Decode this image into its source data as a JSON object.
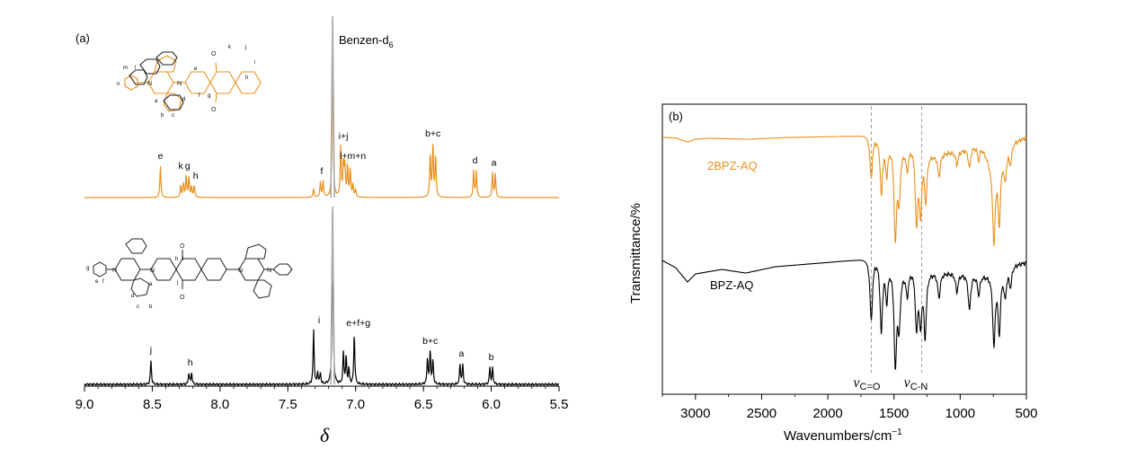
{
  "chart_data": [
    {
      "type": "line",
      "panel_label": "(a)",
      "title": "",
      "xlabel": "δ",
      "ylabel": "",
      "xlim": [
        9.0,
        5.5
      ],
      "x_reversed": true,
      "x_ticks": [
        "9.0",
        "8.5",
        "8.0",
        "7.5",
        "7.0",
        "6.5",
        "6.0",
        "5.5"
      ],
      "solvent_label": "Benzen-d",
      "solvent_subscript": "6",
      "series": [
        {
          "name": "2BPZ-AQ",
          "color": "#E8901E",
          "peaks": [
            {
              "x": 8.44,
              "h": 0.58
            },
            {
              "x": 8.29,
              "h": 0.22
            },
            {
              "x": 8.27,
              "h": 0.26
            },
            {
              "x": 8.25,
              "h": 0.4
            },
            {
              "x": 8.23,
              "h": 0.38
            },
            {
              "x": 8.21,
              "h": 0.2
            },
            {
              "x": 8.19,
              "h": 0.22
            },
            {
              "x": 7.31,
              "h": 0.16
            },
            {
              "x": 7.26,
              "h": 0.28
            },
            {
              "x": 7.24,
              "h": 0.3
            },
            {
              "x": 7.17,
              "h": 2.6
            },
            {
              "x": 7.11,
              "h": 0.95
            },
            {
              "x": 7.09,
              "h": 0.6
            },
            {
              "x": 7.08,
              "h": 0.55
            },
            {
              "x": 7.06,
              "h": 0.58
            },
            {
              "x": 7.04,
              "h": 0.52
            },
            {
              "x": 7.02,
              "h": 0.24
            },
            {
              "x": 7.0,
              "h": 0.14
            },
            {
              "x": 6.45,
              "h": 0.8
            },
            {
              "x": 6.43,
              "h": 1.0
            },
            {
              "x": 6.41,
              "h": 0.78
            },
            {
              "x": 6.13,
              "h": 0.5
            },
            {
              "x": 6.11,
              "h": 0.48
            },
            {
              "x": 5.99,
              "h": 0.46
            },
            {
              "x": 5.97,
              "h": 0.44
            }
          ],
          "labels": [
            {
              "text": "e",
              "x": 8.44
            },
            {
              "text": "k",
              "x": 8.29
            },
            {
              "text": "g",
              "x": 8.24
            },
            {
              "text": "h",
              "x": 8.18
            },
            {
              "text": "f",
              "x": 7.25
            },
            {
              "text": "i+j",
              "x": 7.09
            },
            {
              "text": "l+m+n",
              "x": 7.02
            },
            {
              "text": "b+c",
              "x": 6.43
            },
            {
              "text": "d",
              "x": 6.12
            },
            {
              "text": "a",
              "x": 5.98
            }
          ]
        },
        {
          "name": "BPZ-AQ",
          "color": "#000000",
          "peaks": [
            {
              "x": 8.51,
              "h": 0.45
            },
            {
              "x": 8.23,
              "h": 0.22
            },
            {
              "x": 8.21,
              "h": 0.22
            },
            {
              "x": 7.31,
              "h": 1.0
            },
            {
              "x": 7.28,
              "h": 0.22
            },
            {
              "x": 7.26,
              "h": 0.2
            },
            {
              "x": 7.17,
              "h": 3.2
            },
            {
              "x": 7.09,
              "h": 0.6
            },
            {
              "x": 7.07,
              "h": 0.5
            },
            {
              "x": 7.05,
              "h": 0.3
            },
            {
              "x": 7.01,
              "h": 0.95
            },
            {
              "x": 6.47,
              "h": 0.5
            },
            {
              "x": 6.45,
              "h": 0.62
            },
            {
              "x": 6.43,
              "h": 0.45
            },
            {
              "x": 6.23,
              "h": 0.38
            },
            {
              "x": 6.21,
              "h": 0.36
            },
            {
              "x": 6.01,
              "h": 0.32
            },
            {
              "x": 5.99,
              "h": 0.3
            }
          ],
          "labels": [
            {
              "text": "j",
              "x": 8.51
            },
            {
              "text": "h",
              "x": 8.22
            },
            {
              "text": "i",
              "x": 7.27
            },
            {
              "text": "e+f+g",
              "x": 6.98
            },
            {
              "text": "b+c",
              "x": 6.45
            },
            {
              "text": "a",
              "x": 6.22
            },
            {
              "text": "b",
              "x": 6.0
            }
          ]
        }
      ],
      "molecule_labels": {
        "top": [
          "m",
          "l",
          "n",
          "a",
          "b",
          "c",
          "d",
          "e",
          "f",
          "g",
          "h",
          "i",
          "j",
          "k"
        ],
        "bottom": [
          "g",
          "e",
          "f",
          "d",
          "c",
          "b",
          "a",
          "h",
          "i",
          "j"
        ]
      }
    },
    {
      "type": "line",
      "panel_label": "(b)",
      "title": "",
      "xlabel": "Wavenumbers/cm",
      "xlabel_superscript": "−1",
      "ylabel": "Transmittance/%",
      "xlim": [
        3250,
        500
      ],
      "x_reversed": true,
      "x_ticks": [
        "3000",
        "2500",
        "2000",
        "1500",
        "1000",
        "500"
      ],
      "reference_lines": [
        {
          "x": 1672,
          "label": "v",
          "sub": "C=O"
        },
        {
          "x": 1290,
          "label": "v",
          "sub": "C-N"
        }
      ],
      "series": [
        {
          "name": "2BPZ-AQ",
          "color": "#E8901E",
          "label": "2BPZ-AQ",
          "baseline": [
            [
              3250,
              0.0
            ],
            [
              3150,
              0.6
            ],
            [
              3060,
              5.0
            ],
            [
              3000,
              2.0
            ],
            [
              2900,
              1.0
            ],
            [
              2600,
              2.0
            ],
            [
              2300,
              0.0
            ],
            [
              2000,
              -1.0
            ],
            [
              1800,
              -2.0
            ],
            [
              1700,
              -4.0
            ],
            [
              1600,
              -2.0
            ],
            [
              1450,
              10.0
            ],
            [
              1350,
              5.0
            ],
            [
              1200,
              18.0
            ],
            [
              1000,
              14.0
            ],
            [
              850,
              6.0
            ],
            [
              760,
              30.0
            ],
            [
              600,
              4.0
            ],
            [
              500,
              0.0
            ]
          ],
          "bands": [
            {
              "x": 1672,
              "d": 48
            },
            {
              "x": 1595,
              "d": 62
            },
            {
              "x": 1555,
              "d": 35
            },
            {
              "x": 1490,
              "d": 104
            },
            {
              "x": 1462,
              "d": 55
            },
            {
              "x": 1400,
              "d": 25
            },
            {
              "x": 1330,
              "d": 85
            },
            {
              "x": 1300,
              "d": 70
            },
            {
              "x": 1260,
              "d": 55
            },
            {
              "x": 1160,
              "d": 25
            },
            {
              "x": 1025,
              "d": 15
            },
            {
              "x": 930,
              "d": 22
            },
            {
              "x": 860,
              "d": 18
            },
            {
              "x": 745,
              "d": 88
            },
            {
              "x": 705,
              "d": 72
            },
            {
              "x": 660,
              "d": 30
            },
            {
              "x": 620,
              "d": 20
            }
          ]
        },
        {
          "name": "BPZ-AQ",
          "color": "#000000",
          "label": "BPZ-AQ",
          "baseline": [
            [
              3250,
              0.0
            ],
            [
              3150,
              8.0
            ],
            [
              3060,
              24.0
            ],
            [
              3000,
              15.0
            ],
            [
              2800,
              10.0
            ],
            [
              2620,
              14.0
            ],
            [
              2400,
              7.0
            ],
            [
              2000,
              2.0
            ],
            [
              1800,
              -1.0
            ],
            [
              1700,
              -4.0
            ],
            [
              1600,
              -6.0
            ],
            [
              1450,
              10.0
            ],
            [
              1350,
              5.0
            ],
            [
              1200,
              12.0
            ],
            [
              1000,
              14.0
            ],
            [
              800,
              15.0
            ],
            [
              600,
              4.0
            ],
            [
              500,
              2.0
            ]
          ],
          "bands": [
            {
              "x": 1672,
              "d": 70
            },
            {
              "x": 1596,
              "d": 82
            },
            {
              "x": 1555,
              "d": 40
            },
            {
              "x": 1490,
              "d": 108
            },
            {
              "x": 1462,
              "d": 60
            },
            {
              "x": 1400,
              "d": 28
            },
            {
              "x": 1330,
              "d": 66
            },
            {
              "x": 1300,
              "d": 58
            },
            {
              "x": 1265,
              "d": 72
            },
            {
              "x": 1160,
              "d": 28
            },
            {
              "x": 1025,
              "d": 20
            },
            {
              "x": 930,
              "d": 40
            },
            {
              "x": 860,
              "d": 22
            },
            {
              "x": 745,
              "d": 80
            },
            {
              "x": 705,
              "d": 68
            },
            {
              "x": 660,
              "d": 30
            },
            {
              "x": 620,
              "d": 22
            }
          ]
        }
      ]
    }
  ]
}
